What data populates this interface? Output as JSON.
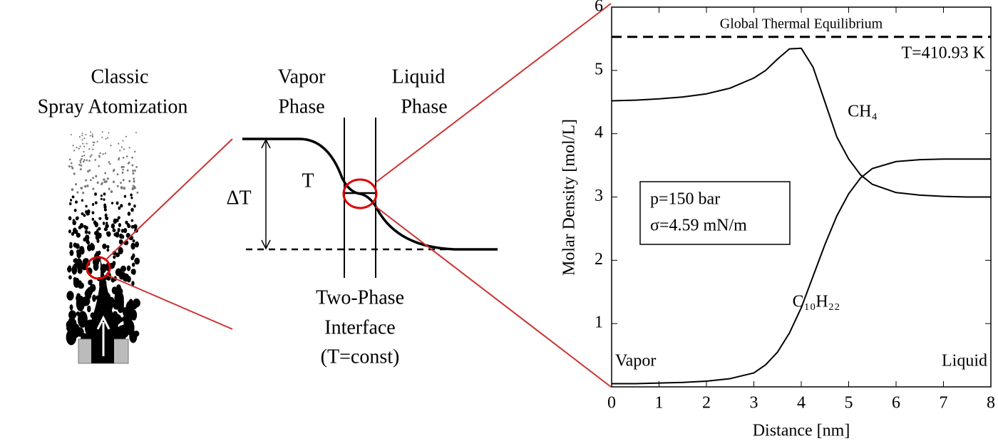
{
  "spray": {
    "title_lines": [
      "Classic",
      "Spray Atomization"
    ]
  },
  "schematic": {
    "vapor_lines": [
      "Vapor",
      "Phase"
    ],
    "liquid_lines": [
      "Liquid",
      "Phase"
    ],
    "temperature": "T",
    "delta": "ΔT",
    "interface_lines": [
      "Two-Phase",
      "Interface",
      "(T=const)"
    ]
  },
  "chart_data": {
    "type": "line",
    "xlabel": "Distance [nm]",
    "ylabel": "Molar Density [mol/L]",
    "x": [
      0,
      0.5,
      1,
      1.5,
      2,
      2.5,
      3,
      3.25,
      3.5,
      3.75,
      4,
      4.25,
      4.5,
      4.75,
      5,
      5.25,
      5.5,
      6,
      6.5,
      7,
      7.5,
      8
    ],
    "series": [
      {
        "name": "CH₄",
        "color": "#000000",
        "values": [
          4.52,
          4.53,
          4.55,
          4.58,
          4.63,
          4.72,
          4.88,
          5.0,
          5.18,
          5.34,
          5.35,
          5.05,
          4.5,
          3.95,
          3.6,
          3.35,
          3.2,
          3.07,
          3.03,
          3.01,
          3.0,
          3.0
        ]
      },
      {
        "name": "C₁₀H₂₂",
        "color": "#000000",
        "values": [
          0.05,
          0.05,
          0.06,
          0.07,
          0.09,
          0.13,
          0.22,
          0.35,
          0.55,
          0.85,
          1.25,
          1.75,
          2.25,
          2.7,
          3.05,
          3.3,
          3.45,
          3.56,
          3.59,
          3.6,
          3.6,
          3.6
        ]
      }
    ],
    "xlim": [
      0,
      8
    ],
    "ylim": [
      0,
      6
    ],
    "xticks": [
      0,
      1,
      2,
      3,
      4,
      5,
      6,
      7,
      8
    ],
    "yticks": [
      1,
      2,
      3,
      4,
      5,
      6
    ],
    "reference_line": {
      "value": 5.53,
      "label": "Global Thermal Equilibrium",
      "temperature": "T=410.93 K"
    },
    "region_labels": [
      "Vapor",
      "Liquid"
    ],
    "conditions": [
      "p=150 bar",
      "σ=4.59 mN/m"
    ]
  }
}
